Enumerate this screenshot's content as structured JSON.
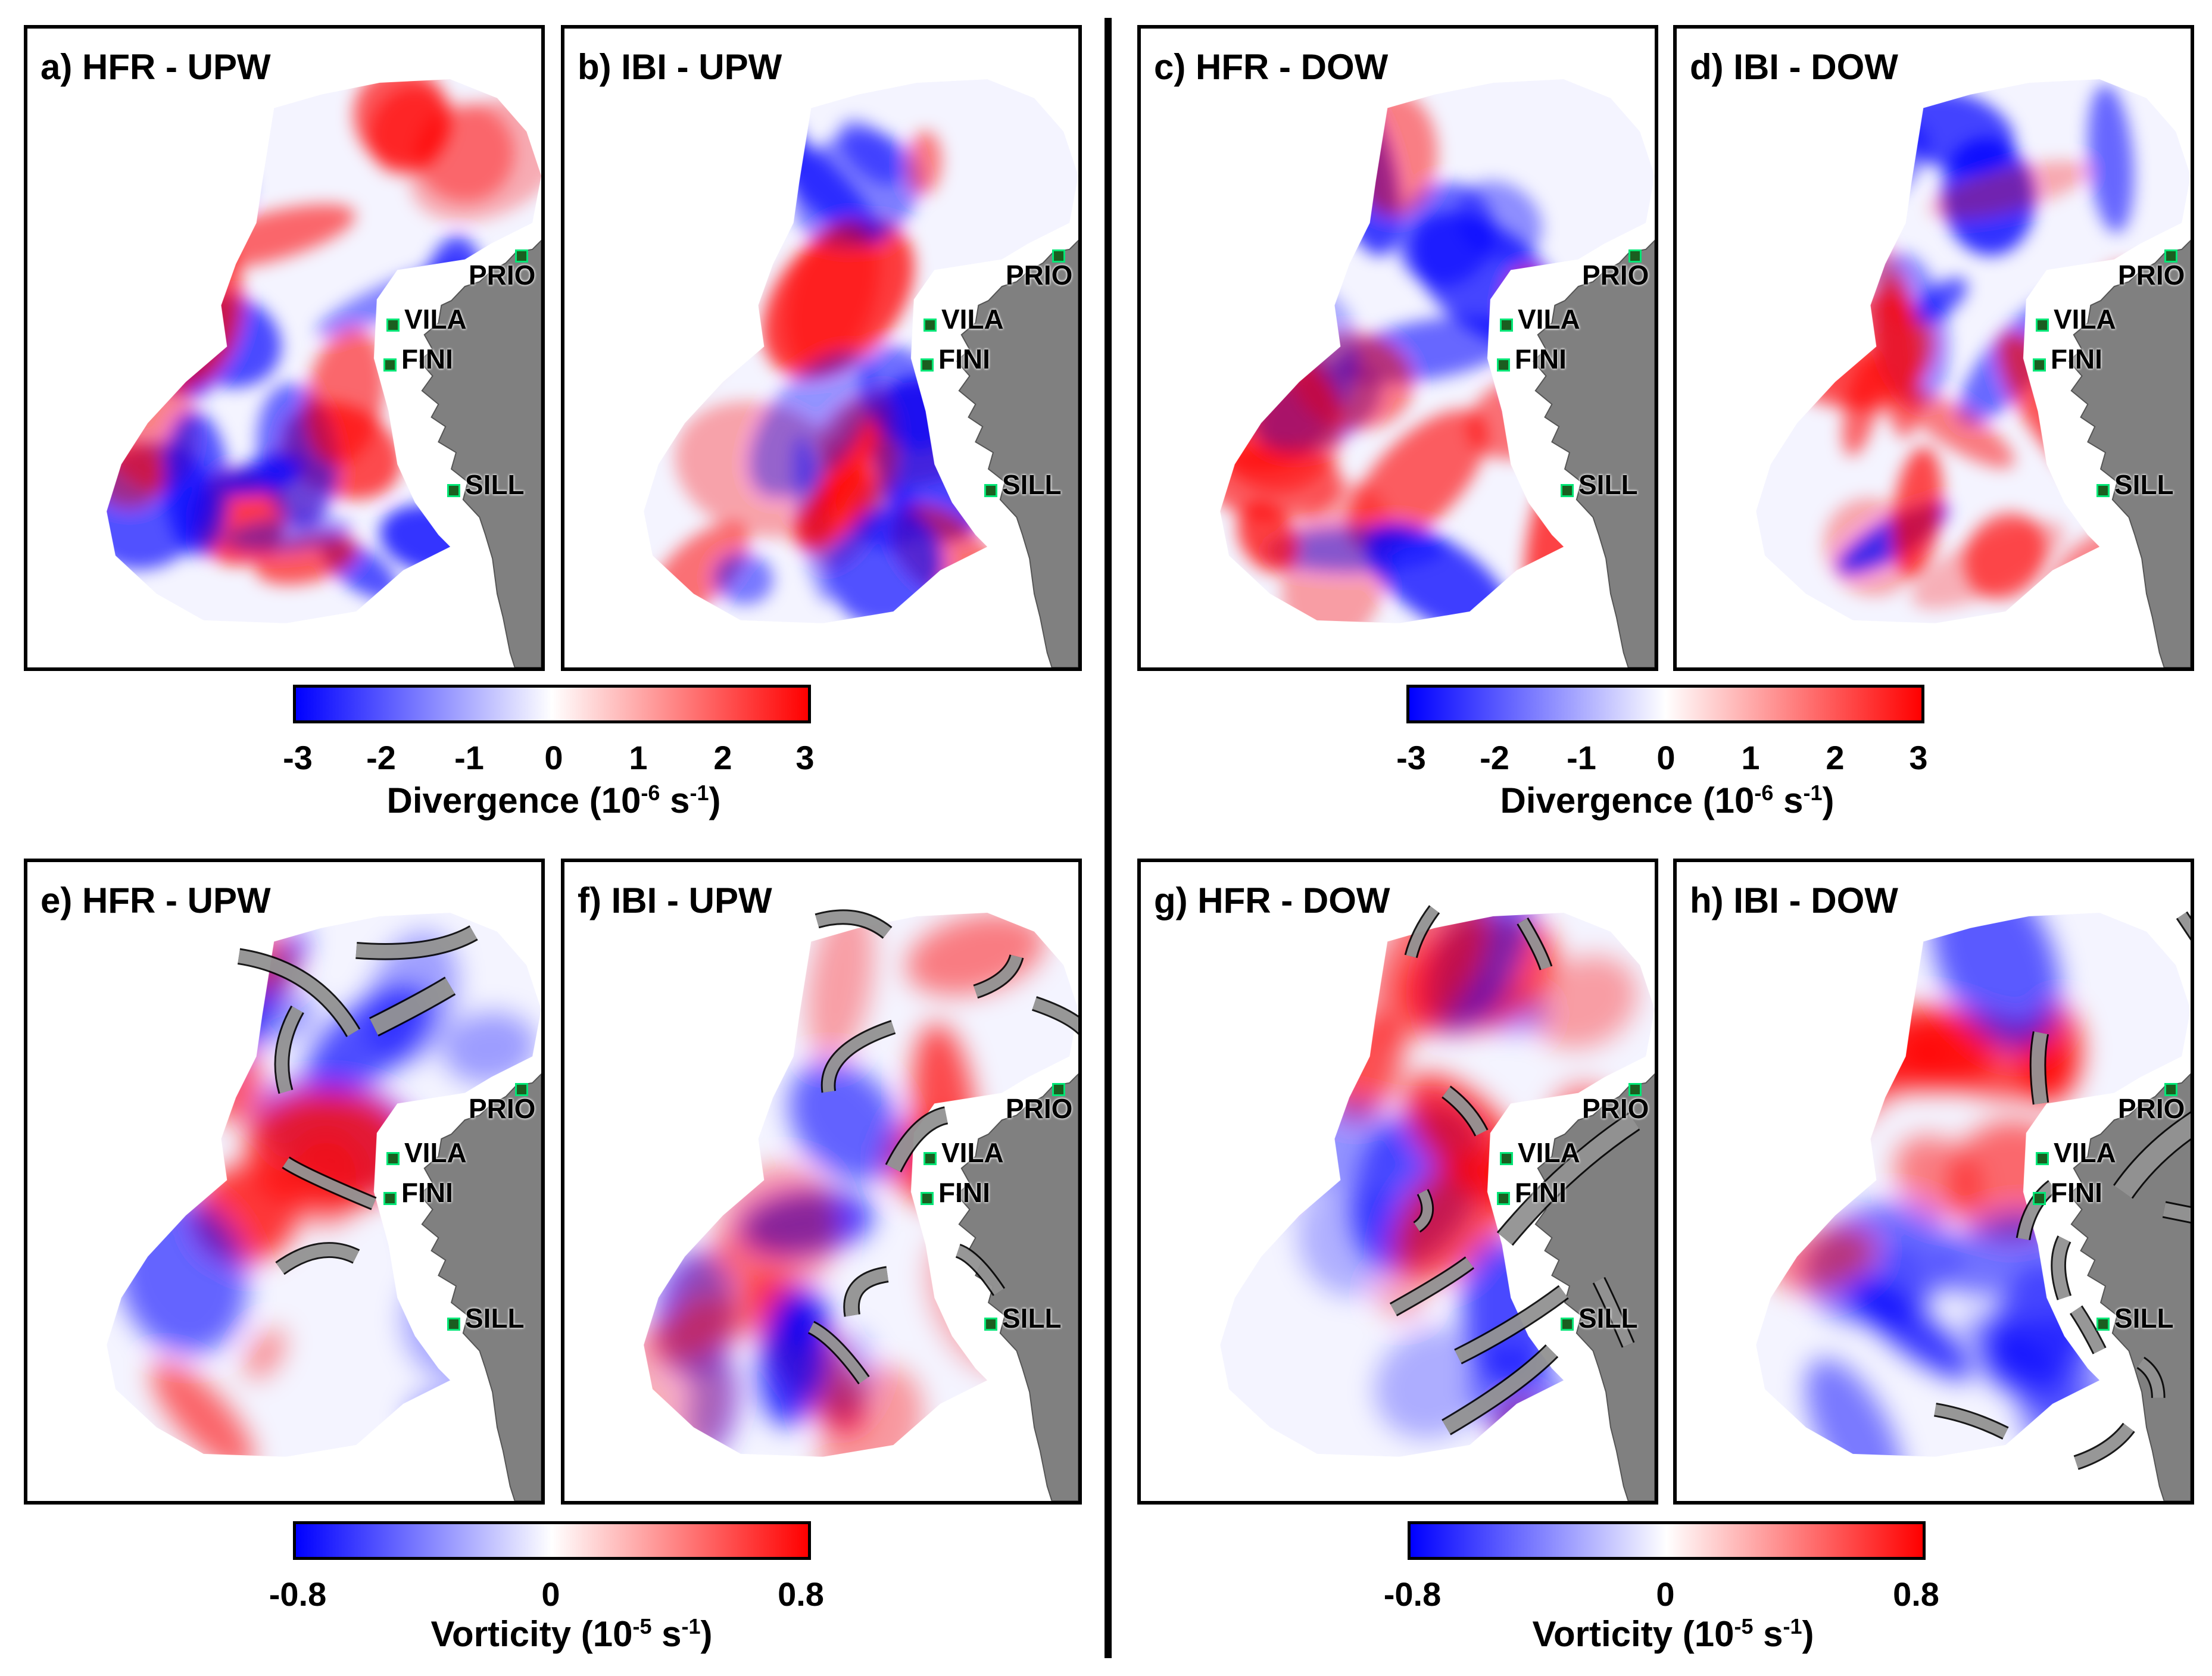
{
  "panels": {
    "a": {
      "title": "a) HFR - UPW"
    },
    "b": {
      "title": "b) IBI - UPW"
    },
    "c": {
      "title": "c) HFR - DOW"
    },
    "d": {
      "title": "d) IBI - DOW"
    },
    "e": {
      "title": "e) HFR - UPW"
    },
    "f": {
      "title": "f) IBI - UPW"
    },
    "g": {
      "title": "g) HFR - DOW"
    },
    "h": {
      "title": "h) IBI - DOW"
    }
  },
  "stations": [
    "PRIO",
    "VILA",
    "FINI",
    "SILL"
  ],
  "divergence_colorbar": {
    "ticks": [
      "-3",
      "-2",
      "-1",
      "0",
      "1",
      "2",
      "3"
    ],
    "label_main": "Divergence (10",
    "label_exp1": "-6",
    "label_mid": " s",
    "label_exp2": "-1",
    "label_end": ")"
  },
  "vorticity_colorbar": {
    "ticks": [
      "-0.8",
      "0",
      "0.8"
    ],
    "label_main": "Vorticity (10",
    "label_exp1": "-5",
    "label_mid": " s",
    "label_exp2": "-1",
    "label_end": ")"
  },
  "colors": {
    "negative": "#0000ff",
    "zero": "#ffffff",
    "positive": "#ff0000",
    "land": "#808080",
    "station": "#00e676"
  }
}
